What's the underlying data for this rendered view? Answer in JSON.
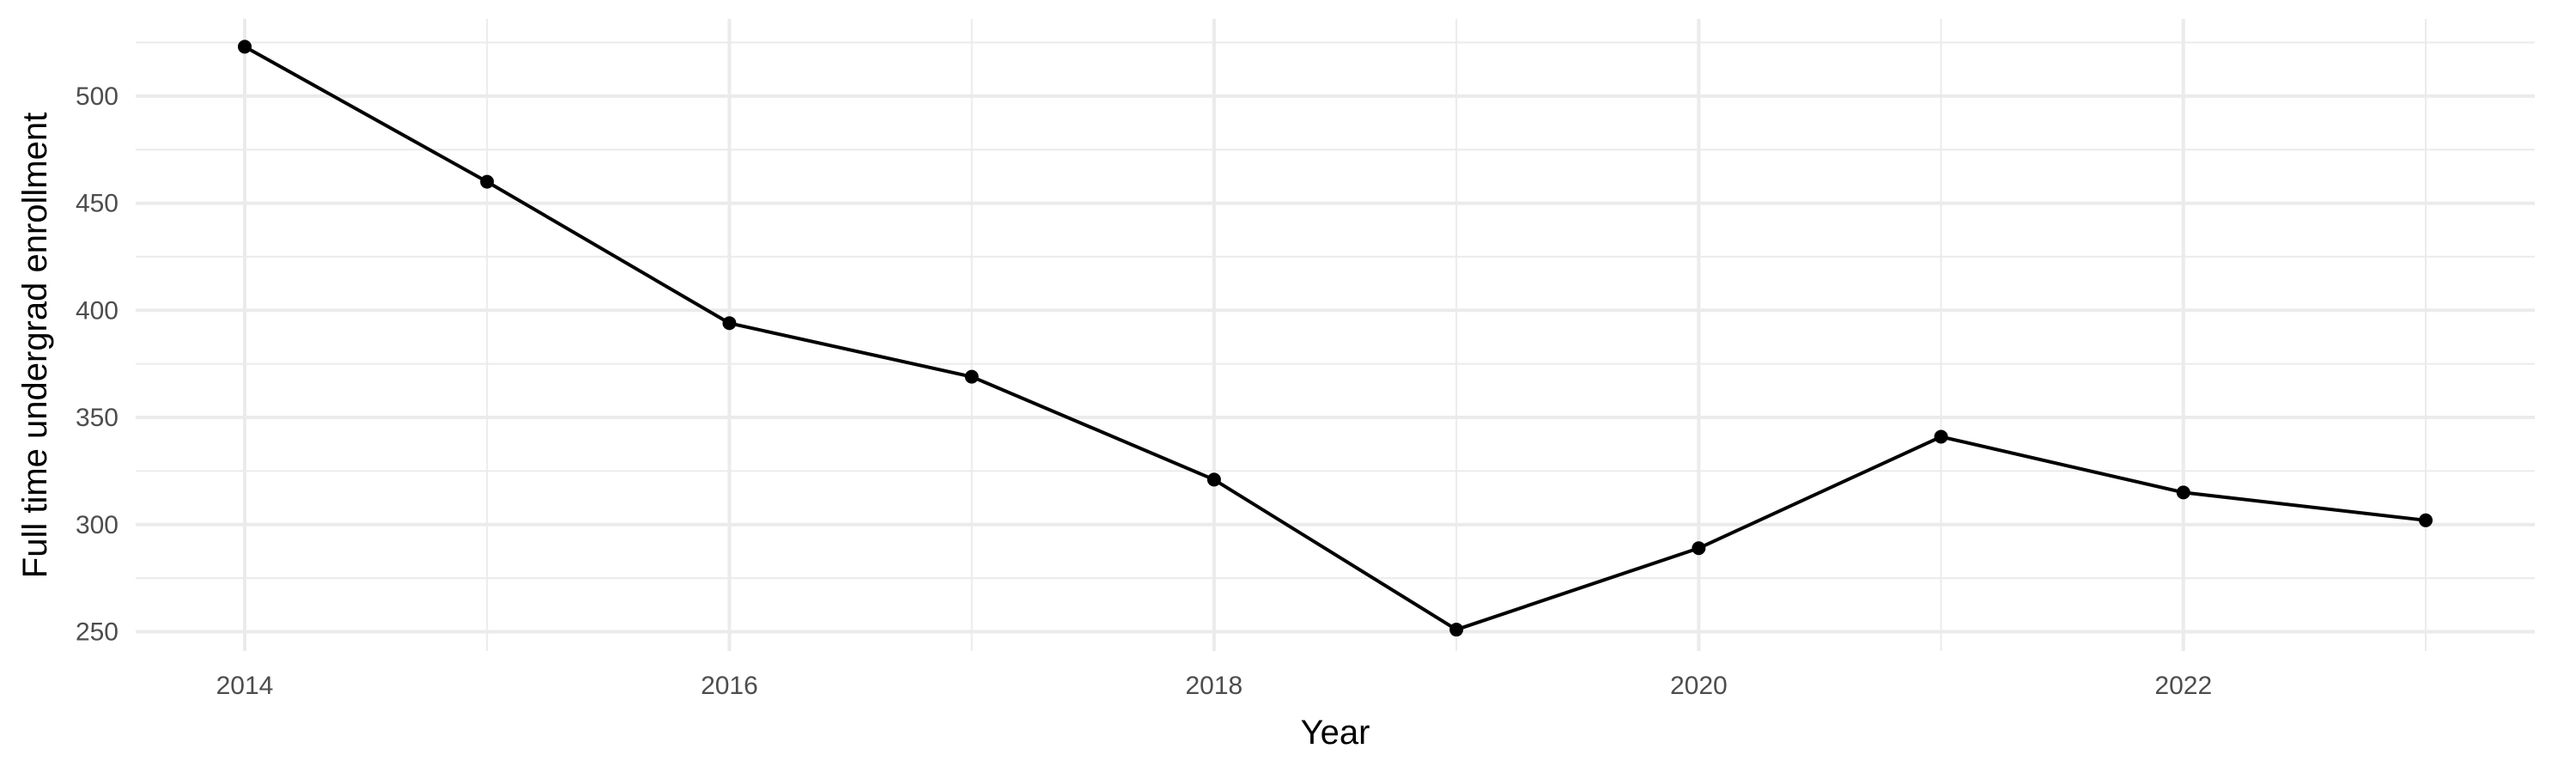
{
  "chart_data": {
    "type": "line",
    "title": "",
    "xlabel": "Year",
    "ylabel": "Full time undergrad enrollment",
    "x": [
      2014,
      2015,
      2016,
      2017,
      2018,
      2019,
      2020,
      2021,
      2022,
      2023
    ],
    "series": [
      {
        "values": [
          523,
          460,
          394,
          369,
          321,
          251,
          289,
          341,
          315,
          302
        ]
      }
    ],
    "xlim": [
      2013.55,
      2023.45
    ],
    "ylim": [
      241,
      536
    ],
    "x_ticks": [
      2014,
      2016,
      2018,
      2020,
      2022
    ],
    "x_tick_labels": [
      "2014",
      "2016",
      "2018",
      "2020",
      "2022"
    ],
    "y_ticks": [
      250,
      300,
      350,
      400,
      450,
      500
    ],
    "y_tick_labels": [
      "250",
      "300",
      "350",
      "400",
      "450",
      "500"
    ],
    "grid": true,
    "legend": "none",
    "colors": {
      "series": "#000000",
      "grid": "#ebebeb",
      "tick_text": "#4d4d4d",
      "background": "#ffffff"
    }
  }
}
